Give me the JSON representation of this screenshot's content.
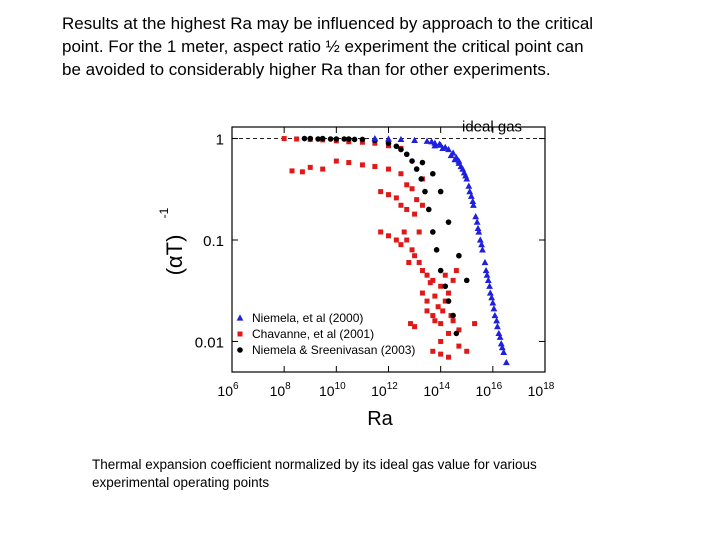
{
  "intro": {
    "lines": [
      "Results at the highest Ra may be influenced by approach to the critical",
      "point.  For the 1 meter, aspect ratio ½ experiment the critical point can",
      "be avoided to considerably higher Ra than for other experiments."
    ]
  },
  "caption": {
    "lines": [
      "Thermal expansion coefficient normalized by its ideal gas value for various",
      "experimental operating points"
    ]
  },
  "chart_data": {
    "type": "scatter",
    "xlabel": "Ra",
    "ylabel": "(αT)",
    "ylabel_superscript": "-1",
    "x_scale": "log",
    "y_scale": "log",
    "xlim": [
      1000000,
      1e+18
    ],
    "ylim": [
      0.005,
      1.3
    ],
    "x_ticks": [
      {
        "base": "10",
        "exp": "6",
        "value": 1000000.0
      },
      {
        "base": "10",
        "exp": "8",
        "value": 100000000.0
      },
      {
        "base": "10",
        "exp": "10",
        "value": 10000000000.0
      },
      {
        "base": "10",
        "exp": "12",
        "value": 1000000000000.0
      },
      {
        "base": "10",
        "exp": "14",
        "value": 100000000000000.0
      },
      {
        "base": "10",
        "exp": "16",
        "value": 1e+16
      },
      {
        "base": "10",
        "exp": "18",
        "value": 1e+18
      }
    ],
    "y_ticks": [
      {
        "label": "1",
        "value": 1
      },
      {
        "label": "0.1",
        "value": 0.1
      },
      {
        "label": "0.01",
        "value": 0.01
      }
    ],
    "reference_line": {
      "label": "ideal gas",
      "y": 1
    },
    "legend_position": "bottom-left",
    "colors": {
      "niemela2000": "#1f1fe0",
      "chavanne2001": "#e01818",
      "niemela_sreenivasan2003": "#000000"
    },
    "series": [
      {
        "name": "Niemela, et al (2000)",
        "marker": "triangle",
        "color": "#1f1fe0",
        "points": [
          [
            300000000000.0,
            1.0
          ],
          [
            1000000000000.0,
            0.99
          ],
          [
            3000000000000.0,
            0.98
          ],
          [
            10000000000000.0,
            0.96
          ],
          [
            30000000000000.0,
            0.94
          ],
          [
            60000000000000.0,
            0.9
          ],
          [
            100000000000000.0,
            0.86
          ],
          [
            150000000000000.0,
            0.82
          ],
          [
            200000000000000.0,
            0.78
          ],
          [
            300000000000000.0,
            0.72
          ],
          [
            400000000000000.0,
            0.65
          ],
          [
            500000000000000.0,
            0.6
          ],
          [
            600000000000000.0,
            0.53
          ],
          [
            800000000000000.0,
            0.46
          ],
          [
            1000000000000000.0,
            0.4
          ],
          [
            1200000000000000.0,
            0.34
          ],
          [
            1500000000000000.0,
            0.27
          ],
          [
            1800000000000000.0,
            0.22
          ],
          [
            2200000000000000.0,
            0.17
          ],
          [
            2700000000000000.0,
            0.13
          ],
          [
            3300000000000000.0,
            0.1
          ],
          [
            4000000000000000.0,
            0.08
          ],
          [
            5000000000000000.0,
            0.06
          ],
          [
            6000000000000000.0,
            0.045
          ],
          [
            7500000000000000.0,
            0.035
          ],
          [
            9000000000000000.0,
            0.027
          ],
          [
            1.1e+16,
            0.021
          ],
          [
            1.4e+16,
            0.016
          ],
          [
            1.7e+16,
            0.012
          ],
          [
            2.1e+16,
            0.0095
          ],
          [
            2.6e+16,
            0.0078
          ],
          [
            3.3e+16,
            0.0062
          ],
          [
            60000000000000.0,
            0.85
          ],
          [
            120000000000000.0,
            0.8
          ],
          [
            250000000000000.0,
            0.68
          ],
          [
            350000000000000.0,
            0.62
          ],
          [
            700000000000000.0,
            0.5
          ],
          [
            1300000000000000.0,
            0.3
          ],
          [
            2500000000000000.0,
            0.15
          ],
          [
            3700000000000000.0,
            0.09
          ],
          [
            5500000000000000.0,
            0.05
          ],
          [
            8000000000000000.0,
            0.03
          ],
          [
            1.2e+16,
            0.018
          ],
          [
            1.9e+16,
            0.011
          ],
          [
            45000000000000.0,
            0.93
          ],
          [
            90000000000000.0,
            0.88
          ],
          [
            500000000000000.0,
            0.57
          ],
          [
            900000000000000.0,
            0.43
          ],
          [
            1700000000000000.0,
            0.24
          ],
          [
            2900000000000000.0,
            0.12
          ],
          [
            6700000000000000.0,
            0.04
          ],
          [
            1e+16,
            0.024
          ],
          [
            1.5e+16,
            0.014
          ],
          [
            2.3e+16,
            0.0087
          ]
        ]
      },
      {
        "name": "Chavanne, et al (2001)",
        "marker": "square",
        "color": "#e01818",
        "points": [
          [
            100000000.0,
            1.0
          ],
          [
            300000000.0,
            0.99
          ],
          [
            1000000000.0,
            0.98
          ],
          [
            3000000000.0,
            0.97
          ],
          [
            10000000000.0,
            0.95
          ],
          [
            30000000000.0,
            0.93
          ],
          [
            100000000000.0,
            0.92
          ],
          [
            300000000000.0,
            0.9
          ],
          [
            1000000000000.0,
            0.85
          ],
          [
            3000000000000.0,
            0.8
          ],
          [
            10000000000.0,
            0.6
          ],
          [
            30000000000.0,
            0.58
          ],
          [
            100000000000.0,
            0.55
          ],
          [
            300000000000.0,
            0.53
          ],
          [
            1000000000000.0,
            0.5
          ],
          [
            3000000000000.0,
            0.45
          ],
          [
            1000000000.0,
            0.52
          ],
          [
            3000000000.0,
            0.5
          ],
          [
            200000000.0,
            0.48
          ],
          [
            500000000.0,
            0.47
          ],
          [
            500000000000.0,
            0.3
          ],
          [
            1000000000000.0,
            0.28
          ],
          [
            2000000000000.0,
            0.26
          ],
          [
            3000000000000.0,
            0.22
          ],
          [
            5000000000000.0,
            0.2
          ],
          [
            10000000000000.0,
            0.18
          ],
          [
            500000000000.0,
            0.12
          ],
          [
            1000000000000.0,
            0.11
          ],
          [
            2000000000000.0,
            0.1
          ],
          [
            3000000000000.0,
            0.09
          ],
          [
            5000000000000.0,
            0.1
          ],
          [
            8000000000000.0,
            0.08
          ],
          [
            10000000000000.0,
            0.07
          ],
          [
            15000000000000.0,
            0.06
          ],
          [
            20000000000000.0,
            0.05
          ],
          [
            30000000000000.0,
            0.045
          ],
          [
            50000000000000.0,
            0.04
          ],
          [
            100000000000000.0,
            0.035
          ],
          [
            200000000000000.0,
            0.03
          ],
          [
            30000000000000.0,
            0.02
          ],
          [
            50000000000000.0,
            0.018
          ],
          [
            100000000000000.0,
            0.015
          ],
          [
            200000000000000.0,
            0.012
          ],
          [
            100000000000000.0,
            0.01
          ],
          [
            50000000000000.0,
            0.008
          ],
          [
            100000000000000.0,
            0.0075
          ],
          [
            200000000000000.0,
            0.007
          ],
          [
            500000000000000.0,
            0.009
          ],
          [
            1000000000000000.0,
            0.008
          ],
          [
            15000000000000.0,
            0.12
          ],
          [
            20000000000000.0,
            0.03
          ],
          [
            30000000000000.0,
            0.025
          ],
          [
            40000000000000.0,
            0.038
          ],
          [
            60000000000000.0,
            0.028
          ],
          [
            80000000000000.0,
            0.022
          ],
          [
            120000000000000.0,
            0.02
          ],
          [
            150000000000000.0,
            0.025
          ],
          [
            250000000000000.0,
            0.018
          ],
          [
            300000000000000.0,
            0.016
          ],
          [
            500000000000000.0,
            0.013
          ],
          [
            7000000000000.0,
            0.015
          ],
          [
            10000000000000.0,
            0.014
          ],
          [
            5000000000000.0,
            0.35
          ],
          [
            8000000000000.0,
            0.32
          ],
          [
            12000000000000.0,
            0.25
          ],
          [
            20000000000000.0,
            0.22
          ],
          [
            4000000000000.0,
            0.12
          ],
          [
            6000000000000.0,
            0.06
          ],
          [
            20000000000000.0,
            0.4
          ],
          [
            60000000000000.0,
            0.016
          ],
          [
            2000000000000000.0,
            0.015
          ],
          [
            150000000000000.0,
            0.045
          ],
          [
            300000000000000.0,
            0.04
          ],
          [
            400000000000000.0,
            0.05
          ]
        ]
      },
      {
        "name": "Niemela & Sreenivasan (2003)",
        "marker": "circle",
        "color": "#000000",
        "points": [
          [
            1000000000.0,
            1.0
          ],
          [
            3000000000.0,
            1.0
          ],
          [
            10000000000.0,
            0.99
          ],
          [
            30000000000.0,
            0.99
          ],
          [
            100000000000.0,
            0.98
          ],
          [
            300000000000.0,
            0.96
          ],
          [
            1000000000000.0,
            0.9
          ],
          [
            2000000000000.0,
            0.84
          ],
          [
            3000000000000.0,
            0.78
          ],
          [
            5000000000000.0,
            0.7
          ],
          [
            8000000000000.0,
            0.6
          ],
          [
            12000000000000.0,
            0.5
          ],
          [
            18000000000000.0,
            0.4
          ],
          [
            25000000000000.0,
            0.3
          ],
          [
            35000000000000.0,
            0.2
          ],
          [
            50000000000000.0,
            0.12
          ],
          [
            70000000000000.0,
            0.08
          ],
          [
            100000000000000.0,
            0.05
          ],
          [
            150000000000000.0,
            0.035
          ],
          [
            200000000000000.0,
            0.025
          ],
          [
            300000000000000.0,
            0.018
          ],
          [
            400000000000000.0,
            0.012
          ],
          [
            20000000000000.0,
            0.58
          ],
          [
            50000000000000.0,
            0.45
          ],
          [
            100000000000000.0,
            0.3
          ],
          [
            200000000000000.0,
            0.15
          ],
          [
            500000000000000.0,
            0.07
          ],
          [
            1000000000000000.0,
            0.04
          ],
          [
            600000000.0,
            1.0
          ],
          [
            2000000000.0,
            0.99
          ],
          [
            6000000000.0,
            0.99
          ],
          [
            20000000000.0,
            0.99
          ],
          [
            50000000000.0,
            0.98
          ]
        ]
      }
    ]
  }
}
